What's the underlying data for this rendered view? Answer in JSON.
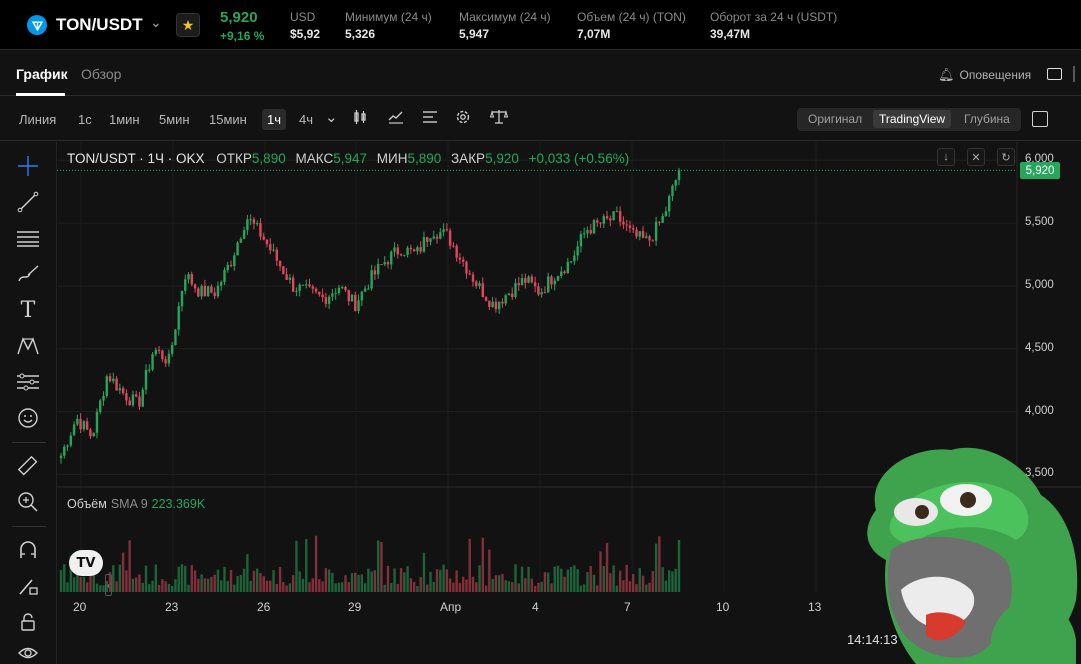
{
  "ticker": {
    "pair": "TON/USDT",
    "last_price": "5,920",
    "change_pct": "+9,16 %",
    "stats": [
      {
        "label": "USD",
        "value": "$5,92"
      },
      {
        "label": "Минимум (24 ч)",
        "value": "5,326"
      },
      {
        "label": "Максимум (24 ч)",
        "value": "5,947"
      },
      {
        "label": "Объем (24 ч) (TON)",
        "value": "7,07M"
      },
      {
        "label": "Оборот за 24 ч (USDT)",
        "value": "39,47M"
      }
    ]
  },
  "tabs": {
    "chart": "График",
    "overview": "Обзор",
    "alerts": "Оповещения"
  },
  "toolbar": {
    "timeframes": [
      "Линия",
      "1с",
      "1мин",
      "5мин",
      "15мин",
      "1ч",
      "4ч"
    ],
    "active_timeframe": "1ч",
    "views": [
      "Оригинал",
      "TradingView",
      "Глубина"
    ],
    "active_view": "TradingView"
  },
  "legend": {
    "title": "TON/USDT · 1Ч · OKX",
    "open_label": "ОТКР",
    "open": "5,890",
    "high_label": "МАКС",
    "high": "5,947",
    "low_label": "МИН",
    "low": "5,890",
    "close_label": "ЗАКР",
    "close": "5,920",
    "change": "+0,033 (+0.56%)"
  },
  "volume_legend": {
    "label": "Объём",
    "sma": "SMA 9",
    "value": "223.369K"
  },
  "price_tag": "5,920",
  "clock": "14:14:13",
  "colors": {
    "up": "#26a65b",
    "down": "#e0475d",
    "accent": "#26a65b"
  },
  "chart_data": {
    "type": "candlestick",
    "y_ticks": [
      "6,000",
      "5,500",
      "5,000",
      "4,500",
      "4,000",
      "3,500"
    ],
    "ylim": [
      3.4,
      6.05
    ],
    "x_ticks": [
      "20",
      "23",
      "26",
      "29",
      "Апр",
      "4",
      "7",
      "10",
      "13"
    ],
    "last_close": 5.92,
    "close_path": [
      {
        "x": "20",
        "y": 3.65
      },
      {
        "x": "20.5",
        "y": 3.95
      },
      {
        "x": "21",
        "y": 3.8
      },
      {
        "x": "21.5",
        "y": 4.3
      },
      {
        "x": "22",
        "y": 4.15
      },
      {
        "x": "22.5",
        "y": 4.05
      },
      {
        "x": "23",
        "y": 4.5
      },
      {
        "x": "23.3",
        "y": 4.4
      },
      {
        "x": "23.7",
        "y": 5.1
      },
      {
        "x": "24",
        "y": 4.95
      },
      {
        "x": "24.5",
        "y": 4.95
      },
      {
        "x": "25",
        "y": 5.2
      },
      {
        "x": "25.5",
        "y": 5.55
      },
      {
        "x": "26",
        "y": 5.4
      },
      {
        "x": "26.5",
        "y": 5.2
      },
      {
        "x": "27",
        "y": 5.0
      },
      {
        "x": "27.5",
        "y": 4.95
      },
      {
        "x": "28",
        "y": 4.9
      },
      {
        "x": "28.5",
        "y": 5.0
      },
      {
        "x": "29",
        "y": 4.85
      },
      {
        "x": "29.5",
        "y": 5.05
      },
      {
        "x": "30",
        "y": 5.2
      },
      {
        "x": "30.5",
        "y": 5.3
      },
      {
        "x": "31",
        "y": 5.25
      },
      {
        "x": "31.5",
        "y": 5.45
      },
      {
        "x": "Апр",
        "y": 5.4
      },
      {
        "x": "1.5",
        "y": 5.2
      },
      {
        "x": "2",
        "y": 5.0
      },
      {
        "x": "2.5",
        "y": 4.85
      },
      {
        "x": "3",
        "y": 4.95
      },
      {
        "x": "3.5",
        "y": 5.05
      },
      {
        "x": "4",
        "y": 4.95
      },
      {
        "x": "4.5",
        "y": 5.1
      },
      {
        "x": "5",
        "y": 5.2
      },
      {
        "x": "5.5",
        "y": 5.45
      },
      {
        "x": "6",
        "y": 5.5
      },
      {
        "x": "6.5",
        "y": 5.55
      },
      {
        "x": "7",
        "y": 5.4
      },
      {
        "x": "7.3",
        "y": 5.35
      },
      {
        "x": "7.6",
        "y": 5.55
      },
      {
        "x": "7.8",
        "y": 5.92
      }
    ]
  }
}
